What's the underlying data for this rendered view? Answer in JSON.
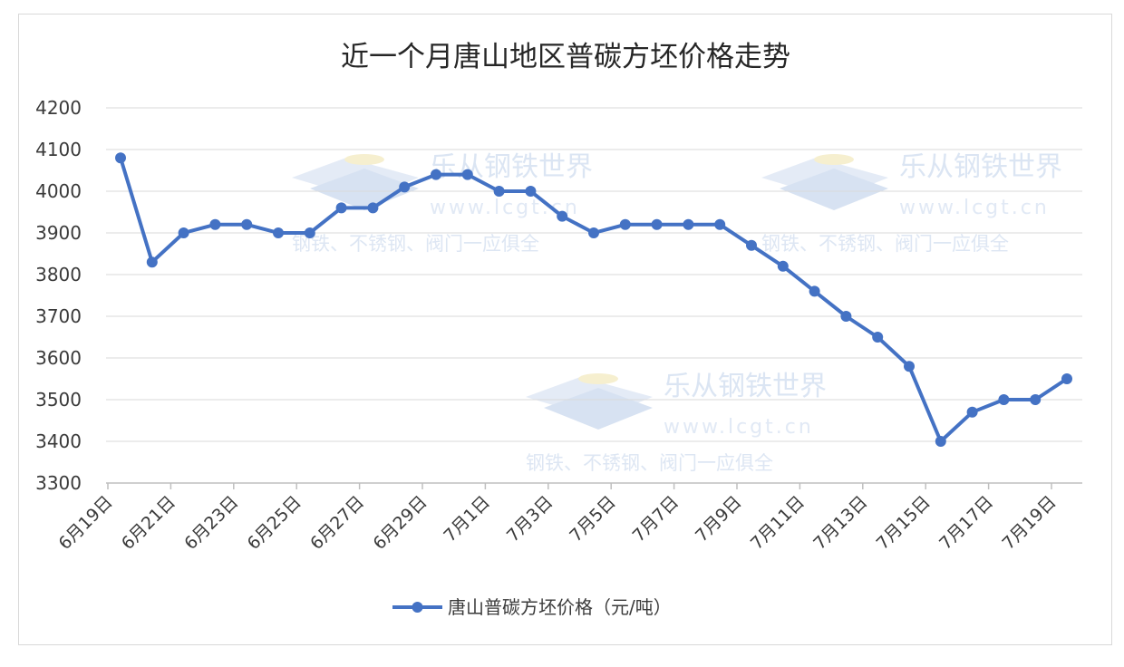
{
  "chart_data": {
    "type": "line",
    "title": "近一个月唐山地区普碳方坯价格走势",
    "xlabel": "",
    "ylabel": "",
    "ylim": [
      3300,
      4200
    ],
    "yticks": [
      3300,
      3400,
      3500,
      3600,
      3700,
      3800,
      3900,
      4000,
      4100,
      4200
    ],
    "grid": true,
    "legend_position": "bottom",
    "tick_labels": [
      "6月19日",
      "6月21日",
      "6月23日",
      "6月25日",
      "6月27日",
      "6月29日",
      "7月1日",
      "7月3日",
      "7月5日",
      "7月7日",
      "7月9日",
      "7月11日",
      "7月13日",
      "7月15日",
      "7月17日",
      "7月19日"
    ],
    "series": [
      {
        "name": "唐山普碳方坯价格（元/吨）",
        "color": "#4472c4",
        "values": [
          4080,
          3830,
          3900,
          3920,
          3920,
          3900,
          3900,
          3960,
          3960,
          4010,
          4040,
          4040,
          4000,
          4000,
          3940,
          3900,
          3920,
          3920,
          3920,
          3920,
          3870,
          3820,
          3760,
          3700,
          3650,
          3580,
          3400,
          3470,
          3500,
          3500,
          3550
        ]
      }
    ]
  },
  "watermarks": [
    {
      "brand": "乐从钢铁世界",
      "url": "www.lcgt.cn",
      "slogan": "钢铁、不锈钢、阀门一应俱全"
    },
    {
      "brand": "乐从钢铁世界",
      "url": "www.lcgt.cn",
      "slogan": "钢铁、不锈钢、阀门一应俱全"
    },
    {
      "brand": "乐从钢铁世界",
      "url": "www.lcgt.cn",
      "slogan": "钢铁、不锈钢、阀门一应俱全"
    }
  ]
}
